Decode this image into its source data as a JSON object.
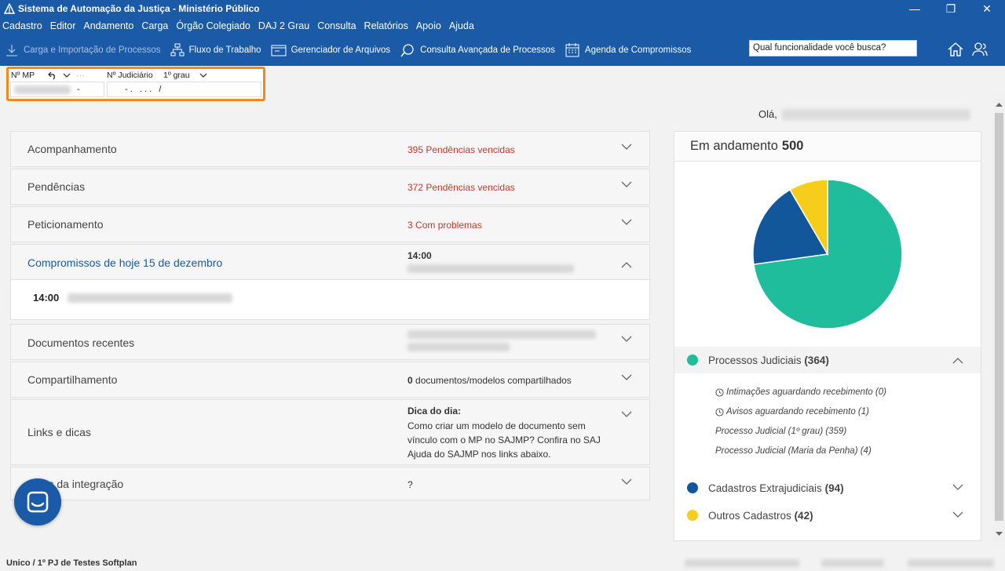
{
  "window": {
    "title": "Sistema de Automação da Justiça - Ministério Público",
    "controls": [
      "—",
      "❐",
      "✕"
    ]
  },
  "menu": [
    "Cadastro",
    "Editor",
    "Andamento",
    "Carga",
    "Órgão Colegiado",
    "DAJ 2 Grau",
    "Consulta",
    "Relatórios",
    "Apoio",
    "Ajuda"
  ],
  "toolbar": {
    "items": [
      {
        "label": "Carga e Importação de Processos",
        "icon": "download-icon"
      },
      {
        "label": "Fluxo de Trabalho",
        "icon": "workflow-icon"
      },
      {
        "label": "Gerenciador de Arquivos",
        "icon": "file-manager-icon"
      },
      {
        "label": "Consulta Avançada de Processos",
        "icon": "advanced-search-icon"
      },
      {
        "label": "Agenda de Compromissos",
        "icon": "calendar-icon"
      }
    ],
    "search_value": "Qual funcionalidade você busca?"
  },
  "process_widget": {
    "mp_label": "Nº MP",
    "mp_more": "···",
    "judicial_label": "Nº Judiciário",
    "grau_label": "1º grau",
    "mp_mask": "-",
    "judicial_mask": "- .   . . .   /"
  },
  "greeting": "Olá,",
  "accordion": {
    "acompanhamento": {
      "title": "Acompanhamento",
      "count": "395",
      "text": "Pendências vencidas"
    },
    "pendencias": {
      "title": "Pendências",
      "count": "372",
      "text": "Pendências vencidas"
    },
    "peticionamento": {
      "title": "Peticionamento",
      "count": "3",
      "text": "Com problemas"
    },
    "compromissos": {
      "title": "Compromissos de hoje 15 de dezembro",
      "time": "14:00",
      "body_time": "14:00"
    },
    "documentos": {
      "title": "Documentos recentes"
    },
    "compartilhamento": {
      "title": "Compartilhamento",
      "count": "0",
      "text": "documentos/modelos compartilhados"
    },
    "links": {
      "title": "Links e dicas",
      "tip_title": "Dica do dia:",
      "tip_text": "Como criar um modelo de documento sem vínculo com o MP no SAJMP? Confira no SAJ Ajuda do SAJMP nos links abaixo."
    },
    "integracao": {
      "title": "Erros da integração",
      "value": "?"
    }
  },
  "panel": {
    "title": "Em andamento",
    "total": "500",
    "categories": [
      {
        "name": "Processos Judiciais",
        "count": "(364)",
        "color": "#1fbd9b"
      },
      {
        "name": "Cadastros Extrajudiciais",
        "count": "(94)",
        "color": "#13579b"
      },
      {
        "name": "Outros Cadastros",
        "count": "(42)",
        "color": "#f7cd1c"
      }
    ],
    "subitems": [
      "Intimações aguardando recebimento (0)",
      "Avisos aguardando recebimento (1)",
      "Processo Judicial (1º grau) (359)",
      "Processo Judicial (Maria da Penha) (4)"
    ]
  },
  "chart_data": {
    "type": "pie",
    "categories": [
      "Processos Judiciais",
      "Cadastros Extrajudiciais",
      "Outros Cadastros"
    ],
    "values": [
      364,
      94,
      42
    ],
    "colors": [
      "#1fbd9b",
      "#13579b",
      "#f7cd1c"
    ],
    "title": "Em andamento"
  },
  "footer": "Unico / 1º PJ de Testes Softplan"
}
